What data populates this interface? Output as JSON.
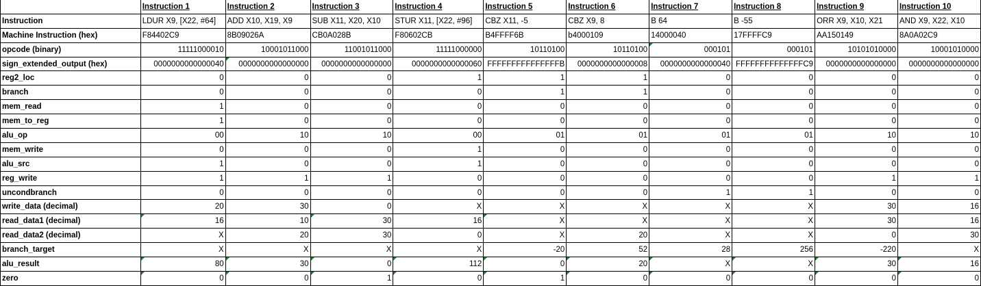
{
  "headers": [
    "",
    "Instruction 1",
    "Instruction 2",
    "Instruction 3",
    "Instruction 4",
    "Instruction 5",
    "Instruction 6",
    "Instruction 7",
    "Instruction 8",
    "Instruction 9",
    "Instruction 10"
  ],
  "rows": [
    {
      "label": "Instruction",
      "align": "left",
      "cells": [
        "LDUR X9, [X22, #64]",
        "ADD X10, X19, X9",
        "SUB X11, X20, X10",
        "STUR X11, [X22, #96]",
        "CBZ X11, -5",
        "CBZ X9, 8",
        "B 64",
        "B -55",
        "ORR X9, X10, X21",
        "AND X9, X22, X10"
      ]
    },
    {
      "label": "Machine Instruction (hex)",
      "align": "left",
      "cells": [
        "F84402C9",
        "8B09026A",
        "CB0A028B",
        "F80602CB",
        "B4FFFF6B",
        "b4000109",
        "14000040",
        "17FFFFC9",
        "AA150149",
        "8A0A02C9"
      ]
    },
    {
      "label": "opcode (binary)",
      "align": "right",
      "cells": [
        "11111000010",
        "10001011000",
        "11001011000",
        "11111000000",
        "10110100",
        "10110100",
        "000101",
        "000101",
        "10101010000",
        "10001010000"
      ]
    },
    {
      "label": "sign_extended_output (hex)",
      "align": "right",
      "cells": [
        "0000000000000040",
        "0000000000000000",
        "0000000000000000",
        "0000000000000060",
        "FFFFFFFFFFFFFFFB",
        "0000000000000008",
        "0000000000000040",
        "FFFFFFFFFFFFFFC9",
        "0000000000000000",
        "0000000000000000"
      ]
    },
    {
      "label": "reg2_loc",
      "align": "right",
      "cells": [
        "0",
        "0",
        "0",
        "1",
        "1",
        "1",
        "0",
        "0",
        "0",
        "0"
      ]
    },
    {
      "label": "branch",
      "align": "right",
      "cells": [
        "0",
        "0",
        "0",
        "0",
        "1",
        "1",
        "0",
        "0",
        "0",
        "0"
      ]
    },
    {
      "label": "mem_read",
      "align": "right",
      "cells": [
        "1",
        "0",
        "0",
        "0",
        "0",
        "0",
        "0",
        "0",
        "0",
        "0"
      ]
    },
    {
      "label": "mem_to_reg",
      "align": "right",
      "cells": [
        "1",
        "0",
        "0",
        "0",
        "0",
        "0",
        "0",
        "0",
        "0",
        "0"
      ]
    },
    {
      "label": "alu_op",
      "align": "right",
      "cells": [
        "00",
        "10",
        "10",
        "00",
        "01",
        "01",
        "01",
        "01",
        "10",
        "10"
      ]
    },
    {
      "label": "mem_write",
      "align": "right",
      "cells": [
        "0",
        "0",
        "0",
        "1",
        "0",
        "0",
        "0",
        "0",
        "0",
        "0"
      ]
    },
    {
      "label": "alu_src",
      "align": "right",
      "cells": [
        "1",
        "0",
        "0",
        "1",
        "0",
        "0",
        "0",
        "0",
        "0",
        "0"
      ]
    },
    {
      "label": "reg_write",
      "align": "right",
      "cells": [
        "1",
        "1",
        "1",
        "0",
        "0",
        "0",
        "0",
        "0",
        "1",
        "1"
      ]
    },
    {
      "label": "uncondbranch",
      "align": "right",
      "cells": [
        "0",
        "0",
        "0",
        "0",
        "0",
        "0",
        "1",
        "1",
        "0",
        "0"
      ]
    },
    {
      "label": "write_data (decimal)",
      "align": "right",
      "cells": [
        "20",
        "30",
        "0",
        "X",
        "X",
        "X",
        "X",
        "X",
        "30",
        "16"
      ]
    },
    {
      "label": "read_data1 (decimal)",
      "align": "right",
      "cells": [
        "16",
        "10",
        "30",
        "16",
        "X",
        "X",
        "X",
        "X",
        "30",
        "16"
      ]
    },
    {
      "label": "read_data2 (decimal)",
      "align": "right",
      "cells": [
        "X",
        "20",
        "30",
        "0",
        "X",
        "20",
        "X",
        "X",
        "0",
        "30"
      ]
    },
    {
      "label": "branch_target",
      "align": "right",
      "cells": [
        "X",
        "X",
        "X",
        "X",
        "-20",
        "52",
        "28",
        "256",
        "-220",
        "X"
      ]
    },
    {
      "label": "alu_result",
      "align": "right",
      "cells": [
        "80",
        "30",
        "0",
        "112",
        "0",
        "20",
        "X",
        "X",
        "30",
        "16"
      ]
    },
    {
      "label": "zero",
      "align": "right",
      "cells": [
        "0",
        "0",
        "1",
        "0",
        "1",
        "0",
        "0",
        "0",
        "0",
        "0"
      ]
    }
  ],
  "tri_marks": [
    [],
    [],
    [
      6
    ],
    [
      1
    ],
    [],
    [],
    [],
    [],
    [],
    [],
    [],
    [],
    [],
    [],
    [
      0,
      2,
      4
    ],
    [],
    [],
    [
      0,
      1,
      2,
      3,
      4,
      5,
      6,
      7,
      8,
      9
    ],
    [
      0,
      1,
      2,
      3,
      4,
      5,
      6,
      7,
      8,
      9
    ]
  ],
  "colors": {
    "note_marker": "#1e7b34",
    "grid": "#000000"
  }
}
